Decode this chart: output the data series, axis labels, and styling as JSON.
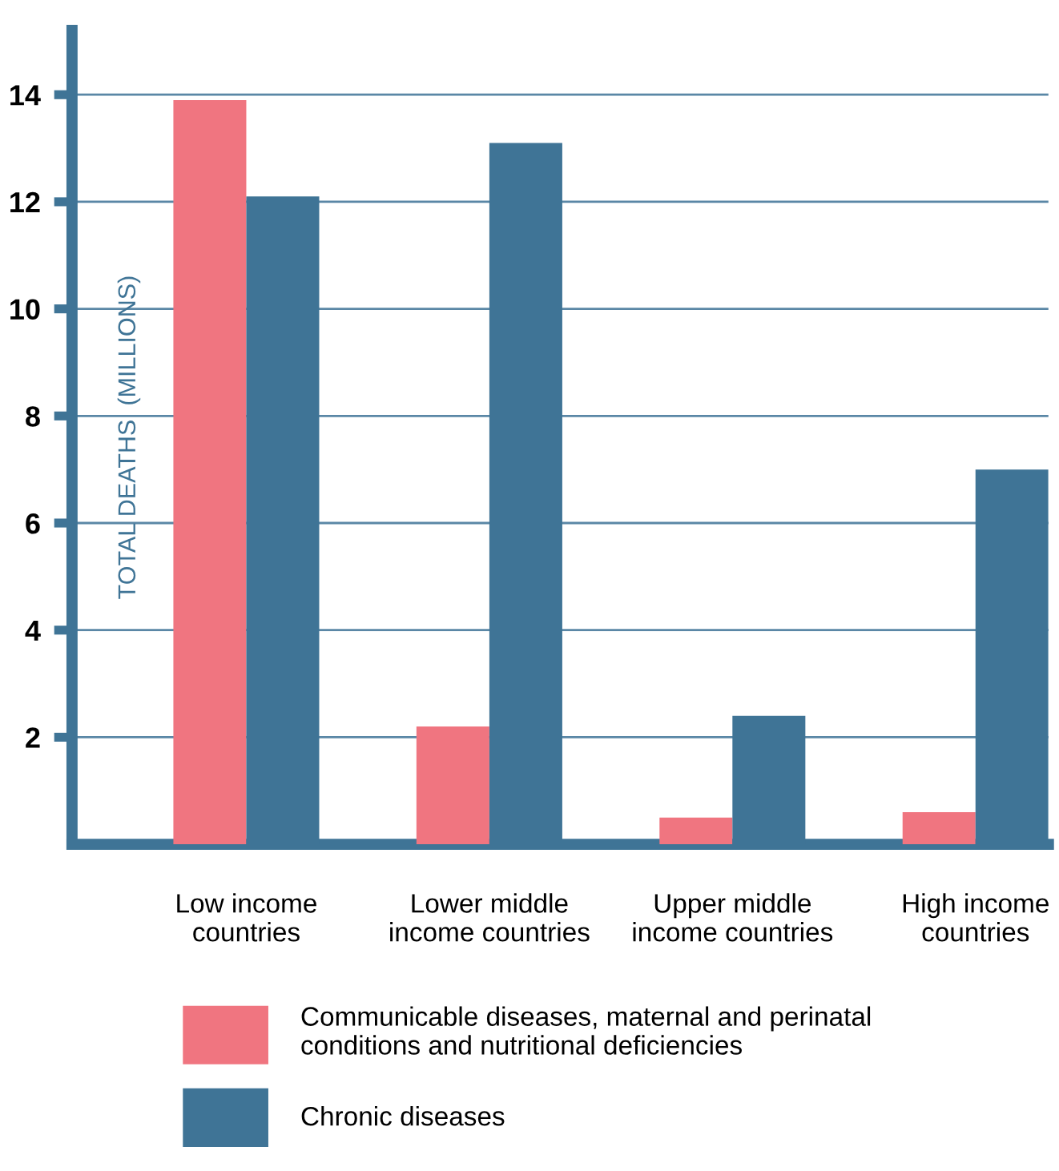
{
  "chart_data": {
    "type": "bar",
    "ylabel": "TOTAL DEATHS  (MILLIONS)",
    "categories": [
      "Low income\ncountries",
      "Lower middle\nincome countries",
      "Upper middle\nincome countries",
      "High income\ncountries"
    ],
    "series": [
      {
        "name": "Communicable diseases, maternal and perinatal\nconditions and nutritional deficiencies",
        "color": "#f07580",
        "values": [
          13.9,
          2.2,
          0.5,
          0.6
        ]
      },
      {
        "name": "Chronic diseases",
        "color": "#3f7496",
        "values": [
          12.1,
          13.1,
          2.4,
          7.0
        ]
      }
    ],
    "ylim": [
      0,
      15.2
    ],
    "yticks": [
      2,
      4,
      6,
      8,
      10,
      12,
      14
    ],
    "grid": "y",
    "legend": "bottom left"
  }
}
